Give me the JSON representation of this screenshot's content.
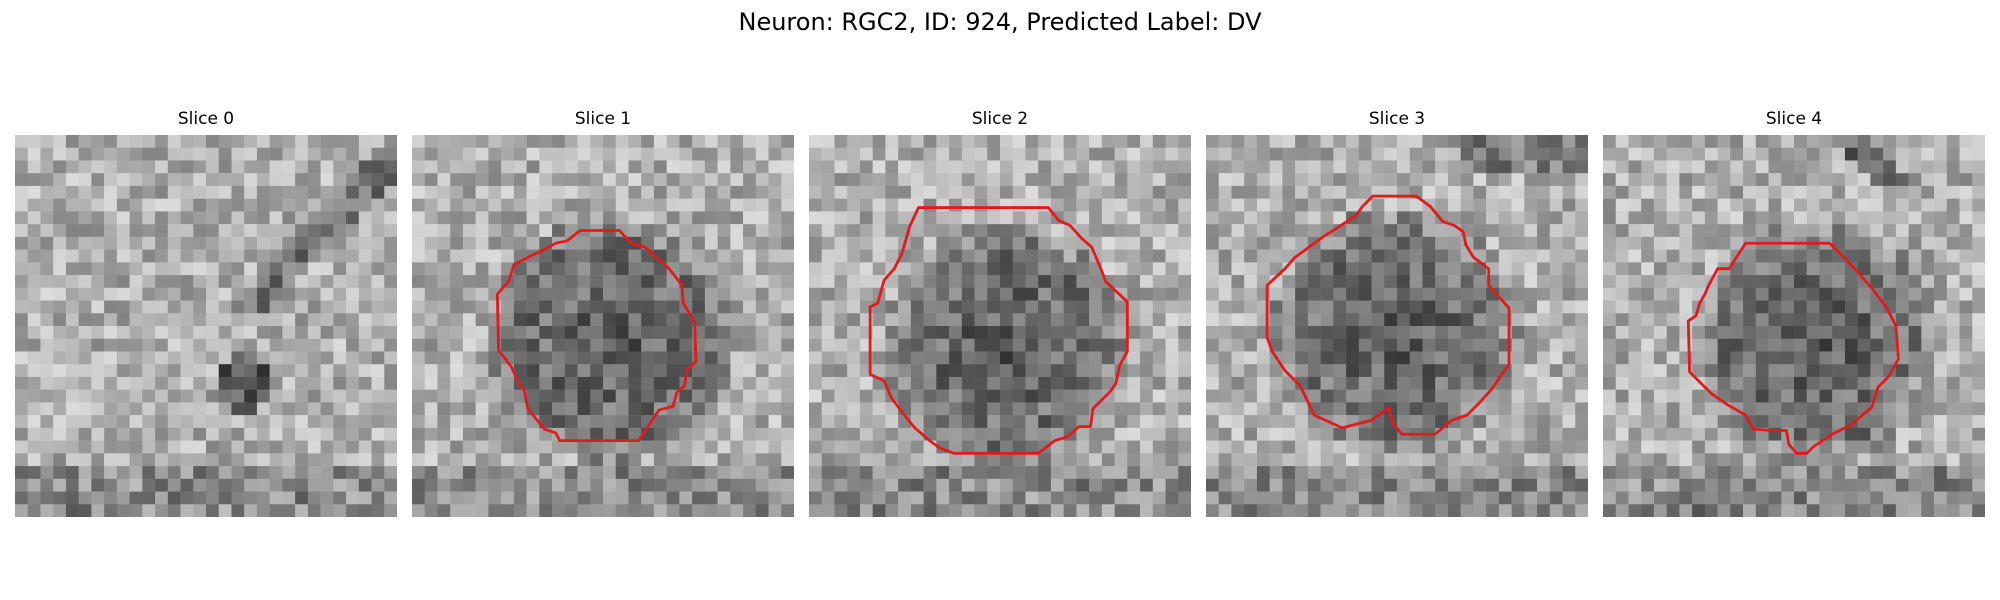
{
  "figure": {
    "title": "Neuron: RGC2, ID: 924, Predicted Label: DV"
  },
  "panels": [
    {
      "title": "Slice 0",
      "has_contour": false,
      "dark_center": [
        0.58,
        0.63
      ]
    },
    {
      "title": "Slice 1",
      "has_contour": true,
      "dark_center": [
        0.5,
        0.52
      ]
    },
    {
      "title": "Slice 2",
      "has_contour": true,
      "dark_center": [
        0.5,
        0.53
      ]
    },
    {
      "title": "Slice 3",
      "has_contour": true,
      "dark_center": [
        0.48,
        0.5
      ]
    },
    {
      "title": "Slice 4",
      "has_contour": true,
      "dark_center": [
        0.54,
        0.53
      ]
    }
  ],
  "colors": {
    "contour": "#e31a1c",
    "background": "#ffffff"
  }
}
